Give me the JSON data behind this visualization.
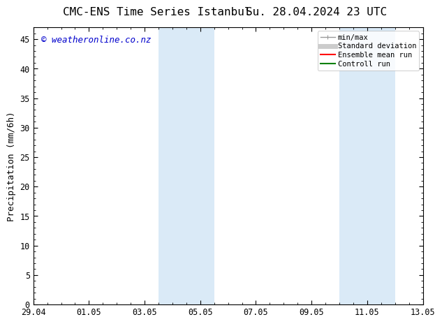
{
  "title": "CMC-ENS Time Series Istanbul",
  "title2": "Su. 28.04.2024 23 UTC",
  "ylabel": "Precipitation (mm/6h)",
  "ylim": [
    0,
    47
  ],
  "yticks": [
    0,
    5,
    10,
    15,
    20,
    25,
    30,
    35,
    40,
    45
  ],
  "xtick_labels": [
    "29.04",
    "01.05",
    "03.05",
    "05.05",
    "07.05",
    "09.05",
    "11.05",
    "13.05"
  ],
  "xtick_positions": [
    0,
    2,
    4,
    6,
    8,
    10,
    12,
    14
  ],
  "background_color": "#ffffff",
  "plot_bg_color": "#ffffff",
  "shaded_bands": [
    {
      "x_start": 4.5,
      "x_end": 6.5
    },
    {
      "x_start": 11.0,
      "x_end": 13.0
    }
  ],
  "shaded_color": "#daeaf7",
  "watermark_text": "© weatheronline.co.nz",
  "watermark_color": "#0000cc",
  "legend_items": [
    {
      "label": "min/max",
      "color": "#999999",
      "lw": 1.0,
      "style": "minmax"
    },
    {
      "label": "Standard deviation",
      "color": "#cccccc",
      "lw": 5.0,
      "style": "line"
    },
    {
      "label": "Ensemble mean run",
      "color": "#ff0000",
      "lw": 1.5,
      "style": "line"
    },
    {
      "label": "Controll run",
      "color": "#008000",
      "lw": 1.5,
      "style": "line"
    }
  ],
  "title_fontsize": 11.5,
  "tick_label_fontsize": 8.5,
  "ylabel_fontsize": 9,
  "watermark_fontsize": 9,
  "legend_fontsize": 7.5
}
